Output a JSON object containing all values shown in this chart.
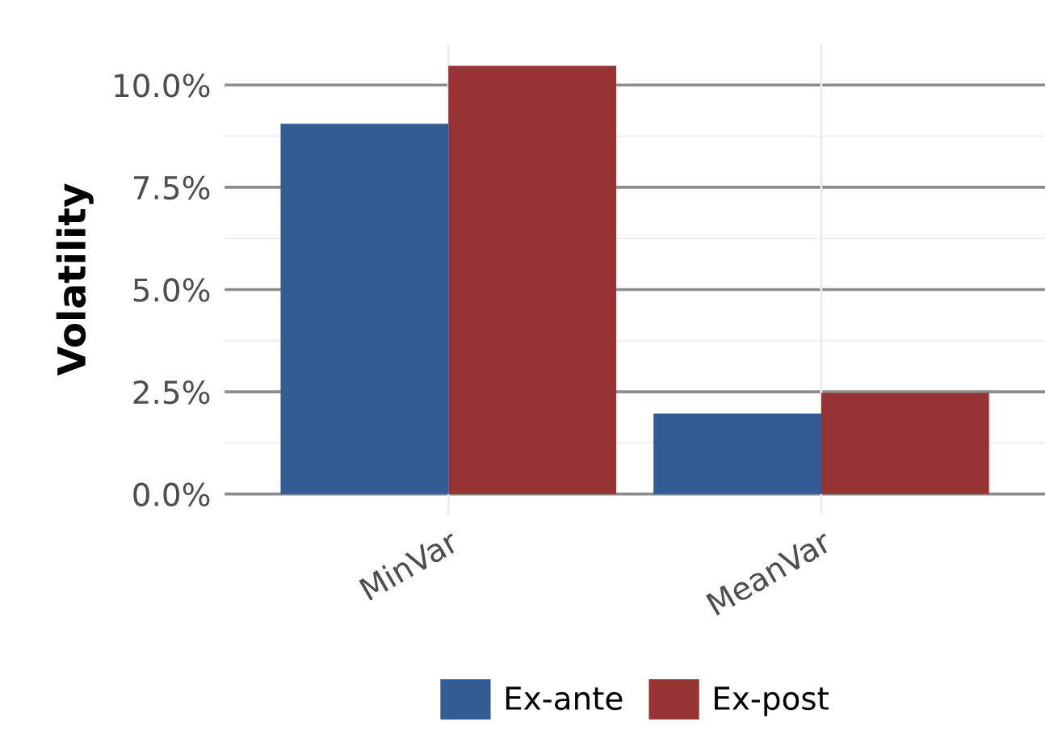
{
  "chart_data": {
    "type": "bar",
    "ylabel": "Volatility",
    "categories": [
      "MinVar",
      "MeanVar"
    ],
    "series": [
      {
        "name": "Ex-ante",
        "color": "#335c94",
        "values": [
          9.05,
          1.97
        ]
      },
      {
        "name": "Ex-post",
        "color": "#963333",
        "values": [
          10.47,
          2.47
        ]
      }
    ],
    "ylim": [
      -0.5,
      11.0
    ],
    "yticks": [
      {
        "value": 0,
        "label": "0.0%"
      },
      {
        "value": 2.5,
        "label": "2.5%"
      },
      {
        "value": 5,
        "label": "5.0%"
      },
      {
        "value": 7.5,
        "label": "7.5%"
      },
      {
        "value": 10,
        "label": "10.0%"
      }
    ],
    "grid": true,
    "legend": "bottom"
  }
}
